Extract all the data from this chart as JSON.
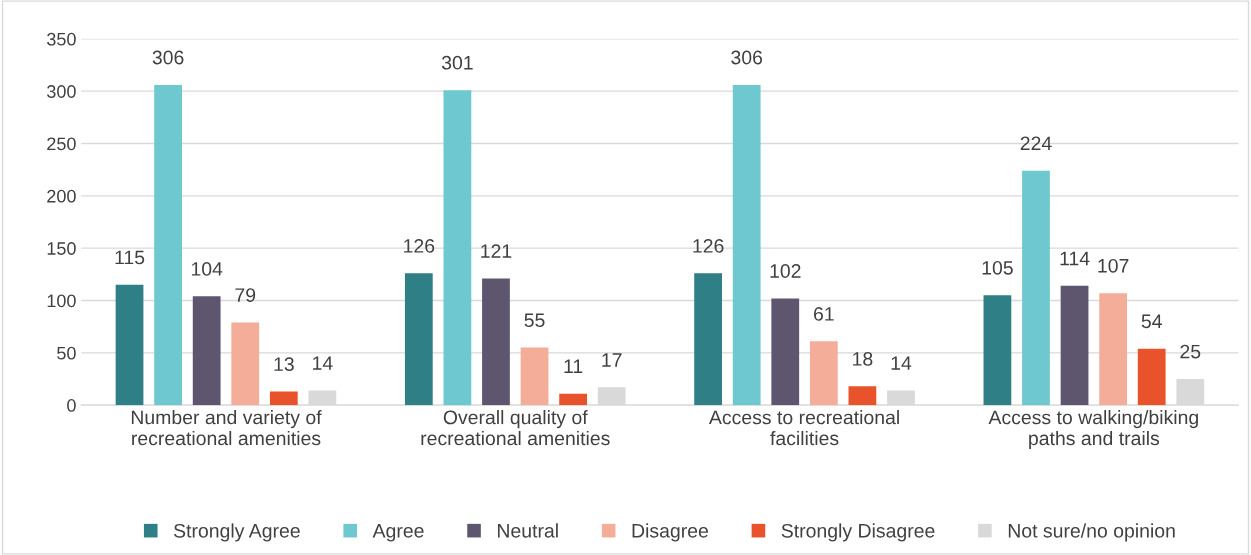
{
  "chart_data": {
    "type": "bar",
    "categories": [
      "Number and variety of\nrecreational amenities",
      "Overall quality of\nrecreational amenities",
      "Access to recreational\nfacilities",
      "Access to walking/biking\npaths and trails"
    ],
    "series": [
      {
        "name": "Strongly Agree",
        "color": "#2e7f86",
        "values": [
          115,
          126,
          126,
          105
        ]
      },
      {
        "name": "Agree",
        "color": "#6ec8cf",
        "values": [
          306,
          301,
          306,
          224
        ]
      },
      {
        "name": "Neutral",
        "color": "#5e566f",
        "values": [
          104,
          121,
          102,
          114
        ]
      },
      {
        "name": "Disagree",
        "color": "#f4ad98",
        "values": [
          79,
          55,
          61,
          107
        ]
      },
      {
        "name": "Strongly Disagree",
        "color": "#e9532b",
        "values": [
          13,
          11,
          18,
          54
        ]
      },
      {
        "name": "Not sure/no opinion",
        "color": "#d9d9d9",
        "values": [
          14,
          17,
          14,
          25
        ]
      }
    ],
    "ylim": [
      0,
      350
    ],
    "yticks": [
      0,
      50,
      100,
      150,
      200,
      250,
      300,
      350
    ],
    "grid": "y",
    "legend": "bottom",
    "data_labels": true
  }
}
